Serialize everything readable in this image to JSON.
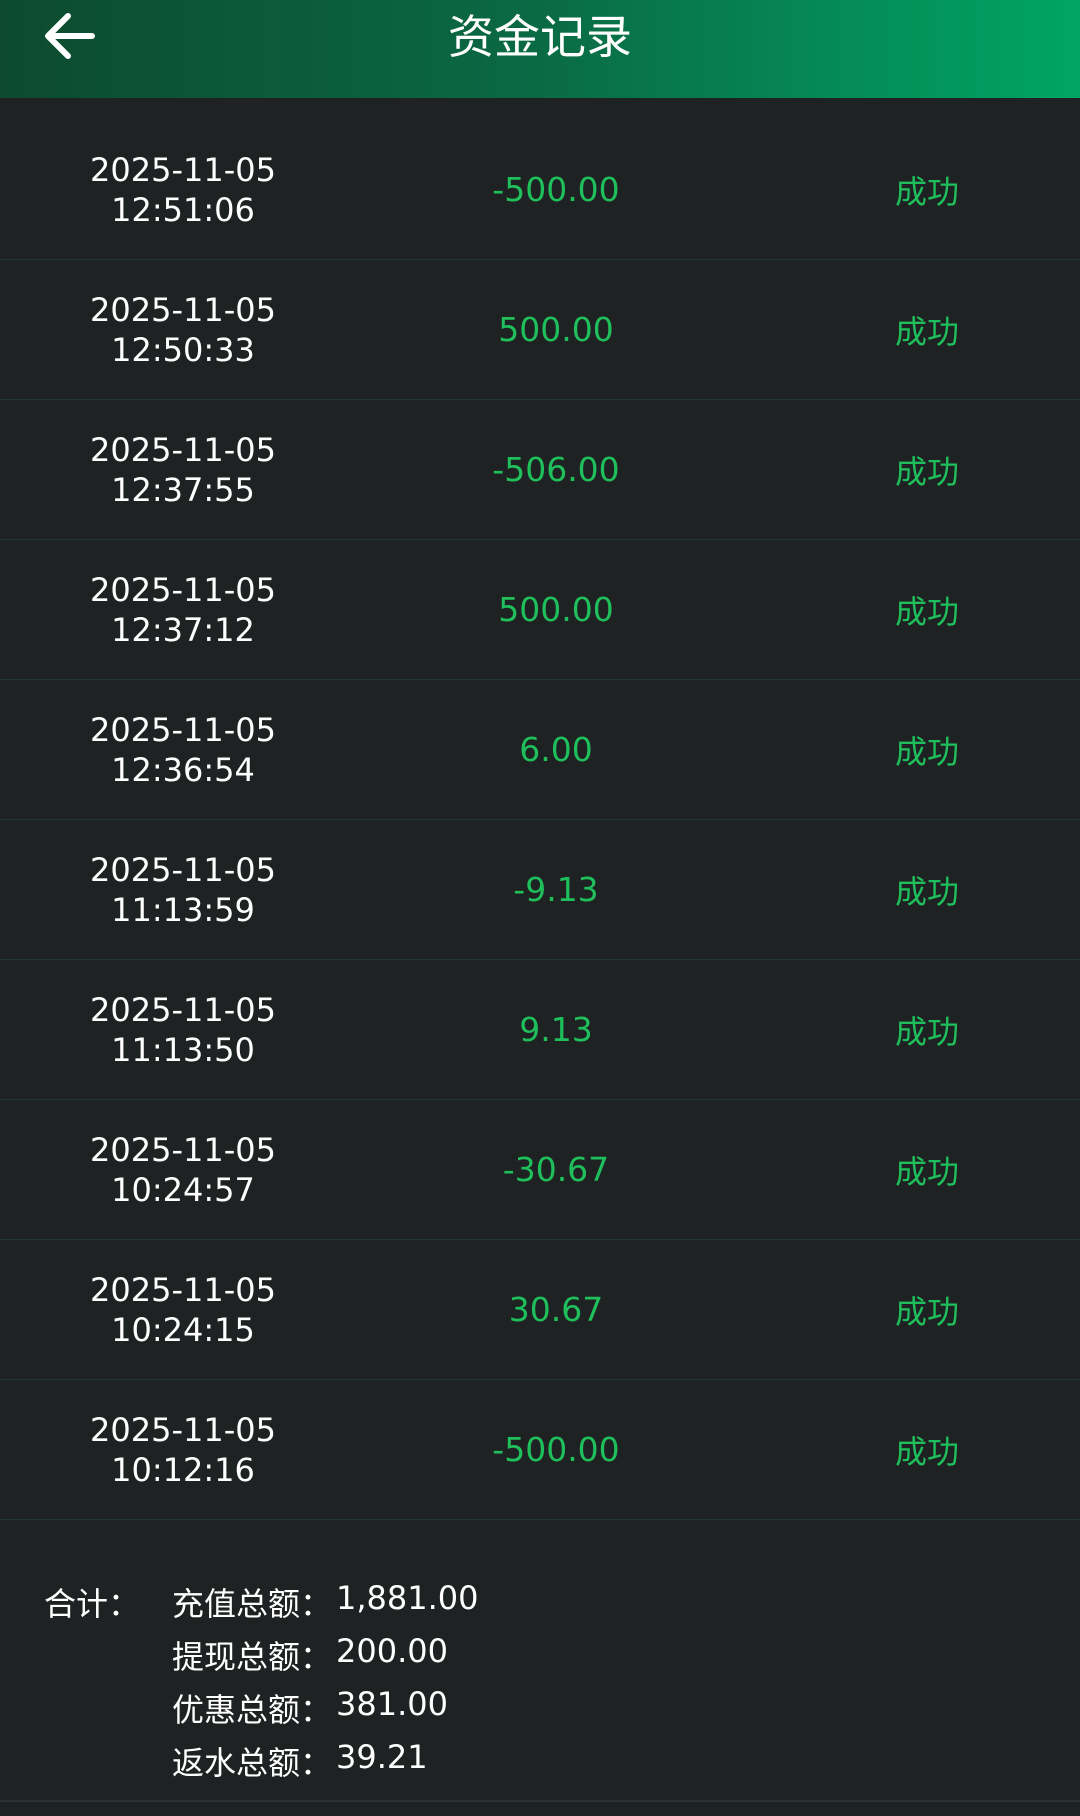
{
  "header": {
    "title": "资金记录"
  },
  "rows": [
    {
      "date": "2025-11-05",
      "time": "12:51:06",
      "amount": "-500.00",
      "status": "成功"
    },
    {
      "date": "2025-11-05",
      "time": "12:50:33",
      "amount": "500.00",
      "status": "成功"
    },
    {
      "date": "2025-11-05",
      "time": "12:37:55",
      "amount": "-506.00",
      "status": "成功"
    },
    {
      "date": "2025-11-05",
      "time": "12:37:12",
      "amount": "500.00",
      "status": "成功"
    },
    {
      "date": "2025-11-05",
      "time": "12:36:54",
      "amount": "6.00",
      "status": "成功"
    },
    {
      "date": "2025-11-05",
      "time": "11:13:59",
      "amount": "-9.13",
      "status": "成功"
    },
    {
      "date": "2025-11-05",
      "time": "11:13:50",
      "amount": "9.13",
      "status": "成功"
    },
    {
      "date": "2025-11-05",
      "time": "10:24:57",
      "amount": "-30.67",
      "status": "成功"
    },
    {
      "date": "2025-11-05",
      "time": "10:24:15",
      "amount": "30.67",
      "status": "成功"
    },
    {
      "date": "2025-11-05",
      "time": "10:12:16",
      "amount": "-500.00",
      "status": "成功"
    }
  ],
  "summary": {
    "label": "合计：",
    "items": [
      {
        "label": "充值总额：",
        "value": "1,881.00"
      },
      {
        "label": "提现总额：",
        "value": "200.00"
      },
      {
        "label": "优惠总额：",
        "value": "381.00"
      },
      {
        "label": "返水总额：",
        "value": "39.21"
      }
    ]
  }
}
